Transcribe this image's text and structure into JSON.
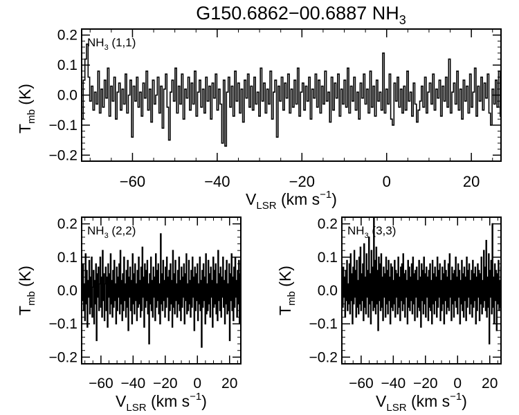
{
  "figure": {
    "title_main": "G150.6862−00.6887 NH",
    "title_sub": "3"
  },
  "chart_data": [
    {
      "type": "line",
      "style": "step",
      "panel": "top",
      "label_main": "NH",
      "label_sub": "3",
      "label_rest": " (1,1)",
      "xlabel_main": "V",
      "xlabel_sub": "LSR",
      "xlabel_rest": " (km s",
      "xlabel_sup": "−1",
      "xlabel_end": ")",
      "ylabel_main": "T",
      "ylabel_sub": "mb",
      "ylabel_rest": " (K)",
      "xlim": [
        -72,
        27
      ],
      "ylim": [
        -0.22,
        0.22
      ],
      "xticks": [
        -60,
        -40,
        -20,
        0,
        20
      ],
      "xtick_labels": [
        "−60",
        "−40",
        "−20",
        "0",
        "20"
      ],
      "yticks": [
        -0.2,
        -0.1,
        0.0,
        0.1,
        0.2
      ],
      "ytick_labels": [
        "−0.2",
        "−0.1",
        "0.0",
        "0.1",
        "0.2"
      ],
      "grid": false,
      "x_start": -72,
      "x_step": 0.38,
      "y": [
        -0.08,
        0.05,
        0.12,
        0.17,
        0.06,
        -0.02,
        0.03,
        -0.05,
        0.01,
        -0.03,
        0.08,
        -0.06,
        0.02,
        -0.04,
        0.05,
        -0.01,
        0.09,
        -0.07,
        0.03,
        -0.02,
        0.06,
        -0.08,
        0.01,
        0.04,
        -0.05,
        0.02,
        -0.03,
        0.07,
        -0.06,
        0.0,
        0.05,
        -0.14,
        0.03,
        -0.02,
        0.06,
        -0.04,
        0.01,
        -0.07,
        0.04,
        -0.01,
        0.08,
        -0.05,
        0.02,
        -0.09,
        0.05,
        -0.03,
        0.0,
        0.06,
        -0.06,
        0.03,
        -0.11,
        0.02,
        0.07,
        -0.04,
        -0.15,
        0.01,
        0.05,
        -0.02,
        0.09,
        -0.06,
        0.03,
        -0.03,
        0.07,
        -0.08,
        0.02,
        -0.01,
        0.06,
        -0.05,
        0.04,
        -0.03,
        0.08,
        -0.07,
        0.01,
        0.05,
        -0.04,
        0.02,
        -0.06,
        0.06,
        -0.02,
        0.03,
        -0.08,
        0.04,
        -0.01,
        0.07,
        -0.05,
        0.02,
        -0.03,
        -0.16,
        0.05,
        -0.17,
        0.01,
        0.06,
        -0.04,
        0.03,
        -0.07,
        0.08,
        -0.02,
        0.04,
        -0.06,
        0.02,
        -0.09,
        0.05,
        -0.01,
        0.07,
        -0.04,
        0.03,
        -0.05,
        0.06,
        -0.03,
        0.01,
        -0.07,
        0.09,
        -0.02,
        0.04,
        -0.06,
        0.02,
        -0.03,
        0.08,
        -0.08,
        0.01,
        0.05,
        -0.14,
        0.03,
        -0.02,
        0.06,
        -0.05,
        0.04,
        -0.01,
        0.07,
        -0.06,
        0.02,
        -0.04,
        0.05,
        -0.03,
        0.09,
        -0.07,
        0.01,
        0.04,
        -0.05,
        0.03,
        -0.02,
        0.06,
        -0.08,
        0.02,
        -0.01,
        0.07,
        -0.04,
        0.05,
        -0.06,
        0.03,
        -0.03,
        0.08,
        -0.02,
        0.01,
        -0.09,
        0.06,
        -0.05,
        0.04,
        -0.01,
        0.07,
        -0.07,
        0.02,
        -0.03,
        0.05,
        -0.04,
        0.09,
        -0.06,
        0.03,
        -0.02,
        0.06,
        -0.05,
        0.01,
        -0.08,
        0.04,
        -0.01,
        0.07,
        -0.03,
        0.02,
        -0.06,
        0.08,
        -0.04,
        0.03,
        -0.07,
        0.05,
        -0.02,
        0.01,
        -0.05,
        0.14,
        -0.06,
        0.02,
        -0.03,
        0.07,
        -0.08,
        -0.1,
        0.04,
        -0.02,
        0.06,
        -0.04,
        0.02,
        -0.06,
        0.03,
        -0.05,
        0.08,
        -0.02,
        0.01,
        -0.07,
        0.04,
        -0.03,
        -0.09,
        -0.05,
        -0.02,
        0.03,
        -0.04,
        0.06,
        -0.06,
        0.01,
        0.04,
        -0.03,
        0.07,
        -0.05,
        0.02,
        -0.01,
        0.05,
        -0.07,
        0.03,
        -0.02,
        0.06,
        -0.04,
        0.12,
        -0.06,
        0.01,
        0.04,
        -0.03,
        0.08,
        -0.05,
        0.02,
        -0.08,
        0.05,
        -0.02,
        0.03,
        -0.06,
        0.07,
        -0.04,
        0.01,
        0.09,
        -0.07,
        0.03,
        -0.02,
        0.06,
        -0.05,
        0.04,
        -0.01,
        0.07,
        -0.06,
        -0.1,
        0.02,
        -0.03,
        0.05,
        -0.04,
        0.08,
        -0.07,
        0.03,
        -0.02,
        0.06,
        -0.05,
        0.02,
        0.04,
        -0.05,
        0.14
      ]
    },
    {
      "type": "line",
      "style": "step",
      "panel": "bottom-left",
      "label_main": "NH",
      "label_sub": "3",
      "label_rest": " (2,2)",
      "xlabel_main": "V",
      "xlabel_sub": "LSR",
      "xlabel_rest": " (km s",
      "xlabel_sup": "−1",
      "xlabel_end": ")",
      "ylabel_main": "T",
      "ylabel_sub": "mb",
      "ylabel_rest": " (K)",
      "xlim": [
        -72,
        27
      ],
      "ylim": [
        -0.22,
        0.22
      ],
      "xticks": [
        -60,
        -40,
        -20,
        0,
        20
      ],
      "xtick_labels": [
        "−60",
        "−40",
        "−20",
        "0",
        "20"
      ],
      "yticks": [
        -0.2,
        -0.1,
        0.0,
        0.1,
        0.2
      ],
      "ytick_labels": [
        "−0.2",
        "−0.1",
        "0.0",
        "0.1",
        "0.2"
      ],
      "grid": false,
      "x_start": -72,
      "x_step": 0.38,
      "y": [
        0.05,
        -0.03,
        0.08,
        -0.06,
        0.02,
        -0.09,
        0.11,
        -0.04,
        0.06,
        -0.11,
        0.03,
        -0.02,
        0.09,
        -0.07,
        0.04,
        -0.05,
        0.1,
        -0.08,
        0.01,
        0.06,
        -0.1,
        0.03,
        -0.04,
        0.08,
        -0.15,
        0.05,
        -0.02,
        0.07,
        -0.06,
        0.02,
        0.1,
        -0.05,
        0.04,
        -0.08,
        0.12,
        -0.03,
        0.05,
        -0.09,
        0.02,
        0.07,
        -0.06,
        0.04,
        -0.11,
        0.08,
        -0.02,
        0.05,
        -0.07,
        0.11,
        -0.04,
        0.03,
        -0.08,
        0.06,
        -0.05,
        0.09,
        -0.03,
        0.02,
        -0.1,
        0.07,
        -0.06,
        0.04,
        -0.02,
        0.08,
        -0.07,
        0.12,
        -0.04,
        0.03,
        -0.09,
        0.05,
        -0.06,
        0.1,
        -0.03,
        0.02,
        -0.08,
        0.06,
        -0.05,
        0.09,
        -0.12,
        0.04,
        -0.02,
        0.07,
        -0.06,
        0.03,
        -0.1,
        0.11,
        -0.04,
        0.05,
        -0.07,
        0.08,
        -0.03,
        0.02,
        -0.09,
        0.06,
        -0.05,
        0.1,
        -0.04,
        0.03,
        -0.08,
        0.07,
        -0.06,
        0.13,
        -0.02,
        0.04,
        -0.11,
        0.08,
        -0.05,
        0.06,
        -0.03,
        0.09,
        -0.07,
        0.02,
        -0.16,
        0.05,
        -0.04,
        0.1,
        -0.06,
        0.03,
        -0.08,
        0.07,
        -0.02,
        0.04,
        -0.09,
        0.11,
        -0.05,
        0.06,
        -0.03,
        0.08,
        -0.07,
        0.02,
        -0.1,
        0.17,
        -0.04,
        0.05,
        -0.06,
        0.09,
        -0.03,
        0.03,
        -0.08,
        0.07,
        -0.05,
        0.1,
        -0.02,
        0.04,
        -0.09,
        0.06,
        -0.06,
        0.08,
        -0.04,
        0.03,
        -0.11,
        0.12,
        -0.05,
        0.05,
        -0.07,
        0.09,
        -0.03,
        0.02,
        -0.08,
        0.06,
        -0.04,
        0.1,
        -0.06,
        0.03,
        -0.09,
        0.07,
        -0.05,
        0.04,
        -0.02,
        0.08,
        -0.1,
        0.05,
        -0.03,
        0.11,
        -0.07,
        0.02,
        -0.06,
        0.09,
        -0.04,
        0.03,
        -0.08,
        0.06,
        -0.05,
        0.1,
        -0.02,
        0.04,
        -0.12,
        0.07,
        -0.06,
        0.05,
        -0.03,
        0.08,
        -0.09,
        0.02,
        -0.04,
        0.1,
        -0.06,
        0.03,
        -0.17,
        0.06,
        -0.05,
        0.08,
        -0.03,
        0.04,
        -0.1,
        0.11,
        -0.07,
        0.02,
        -0.06,
        0.09,
        -0.04,
        0.05,
        -0.08,
        0.07,
        -0.02,
        0.03,
        -0.11,
        0.1,
        -0.05,
        0.06,
        -0.04,
        0.08,
        -0.07,
        0.02,
        -0.09,
        0.12,
        -0.03,
        0.05,
        -0.06,
        0.07,
        -0.08,
        0.04,
        -0.02,
        0.1,
        -0.05,
        0.03,
        -0.1,
        0.06,
        -0.04,
        0.09,
        -0.07,
        0.02,
        -0.06,
        0.08,
        -0.15,
        0.05,
        -0.03,
        0.11,
        -0.06,
        0.04,
        -0.09,
        0.07,
        -0.05,
        0.1,
        -0.02,
        0.03,
        -0.08,
        0.06,
        -0.04,
        0.09,
        -0.1,
        0.05,
        -0.03,
        0.08,
        -0.07,
        0.12,
        -0.05,
        0.04
      ]
    },
    {
      "type": "line",
      "style": "step",
      "panel": "bottom-right",
      "label_main": "NH",
      "label_sub": "3",
      "label_rest": " (3,3)",
      "xlabel_main": "V",
      "xlabel_sub": "LSR",
      "xlabel_rest": " (km s",
      "xlabel_sup": "−1",
      "xlabel_end": ")",
      "ylabel_main": "T",
      "ylabel_sub": "mb",
      "ylabel_rest": " (K)",
      "xlim": [
        -72,
        27
      ],
      "ylim": [
        -0.22,
        0.22
      ],
      "xticks": [
        -60,
        -40,
        -20,
        0,
        20
      ],
      "xtick_labels": [
        "−60",
        "−40",
        "−20",
        "0",
        "20"
      ],
      "yticks": [
        -0.2,
        -0.1,
        0.0,
        0.1,
        0.2
      ],
      "ytick_labels": [
        "−0.2",
        "−0.1",
        "0.0",
        "0.1",
        "0.2"
      ],
      "grid": false,
      "x_start": -72,
      "x_step": 0.38,
      "y": [
        0.03,
        -0.05,
        0.07,
        -0.02,
        0.04,
        -0.08,
        0.06,
        -0.03,
        0.09,
        -0.06,
        0.02,
        -0.04,
        0.08,
        -0.07,
        0.11,
        -0.03,
        0.05,
        -0.1,
        0.07,
        -0.04,
        0.12,
        -0.02,
        0.06,
        -0.08,
        0.09,
        -0.05,
        0.03,
        -0.07,
        0.1,
        -0.04,
        0.13,
        -0.06,
        0.05,
        -0.03,
        0.08,
        -0.09,
        0.14,
        -0.05,
        0.04,
        -0.07,
        0.11,
        -0.02,
        0.06,
        -0.08,
        0.16,
        -0.04,
        0.05,
        -0.1,
        0.12,
        -0.03,
        0.07,
        -0.06,
        0.28,
        -0.05,
        0.09,
        -0.07,
        0.13,
        -0.04,
        0.06,
        -0.12,
        0.1,
        -0.03,
        0.08,
        -0.06,
        0.11,
        -0.05,
        0.04,
        -0.09,
        0.07,
        -0.02,
        0.05,
        -0.08,
        0.1,
        -0.04,
        0.06,
        -0.07,
        0.09,
        -0.03,
        0.04,
        -0.1,
        0.08,
        -0.05,
        0.07,
        -0.06,
        0.03,
        -0.04,
        0.09,
        -0.08,
        0.06,
        -0.02,
        0.05,
        -0.07,
        0.1,
        -0.05,
        0.04,
        -0.09,
        0.07,
        -0.03,
        0.08,
        -0.06,
        0.11,
        -0.04,
        0.05,
        -0.08,
        0.06,
        -0.02,
        0.03,
        -0.1,
        0.09,
        -0.05,
        0.07,
        -0.06,
        0.04,
        -0.03,
        0.08,
        -0.07,
        0.1,
        -0.04,
        0.05,
        -0.09,
        0.06,
        -0.02,
        0.07,
        -0.08,
        0.03,
        -0.05,
        0.09,
        -0.06,
        0.04,
        -0.11,
        0.08,
        -0.03,
        0.06,
        -0.07,
        0.1,
        -0.04,
        0.05,
        -0.08,
        0.07,
        -0.02,
        0.04,
        -0.09,
        0.06,
        -0.05,
        0.08,
        -0.06,
        0.03,
        -0.1,
        0.09,
        -0.04,
        0.05,
        -0.07,
        0.07,
        -0.03,
        0.04,
        -0.08,
        0.1,
        -0.05,
        0.06,
        -0.02,
        0.08,
        -0.09,
        0.03,
        -0.06,
        0.07,
        -0.04,
        0.05,
        -0.1,
        0.09,
        -0.03,
        0.06,
        -0.07,
        0.04,
        -0.05,
        0.08,
        -0.06,
        0.11,
        -0.02,
        0.03,
        -0.09,
        0.07,
        -0.04,
        0.05,
        -0.08,
        0.06,
        -0.03,
        0.1,
        -0.05,
        0.04,
        -0.07,
        0.08,
        -0.02,
        0.06,
        -0.1,
        0.03,
        -0.04,
        0.09,
        -0.06,
        0.05,
        -0.08,
        0.07,
        -0.03,
        0.04,
        -0.09,
        0.1,
        -0.05,
        0.06,
        -0.02,
        0.08,
        -0.07,
        0.03,
        -0.04,
        0.06,
        -0.08,
        0.09,
        -0.05,
        0.05,
        -0.03,
        0.07,
        -0.1,
        0.04,
        -0.06,
        0.08,
        -0.02,
        0.06,
        -0.09,
        0.05,
        -0.04,
        0.1,
        -0.07,
        0.03,
        -0.05,
        0.12,
        -0.03,
        0.07,
        -0.06,
        0.15,
        -0.08,
        0.04,
        -0.05,
        0.11,
        -0.16,
        0.06,
        -0.02,
        0.09,
        -0.07,
        0.2,
        -0.05,
        0.04,
        -0.1,
        0.08,
        -0.03,
        0.06,
        -0.12,
        0.05,
        -0.04,
        0.09,
        -0.06,
        0.03,
        -0.05,
        0.07
      ]
    }
  ]
}
